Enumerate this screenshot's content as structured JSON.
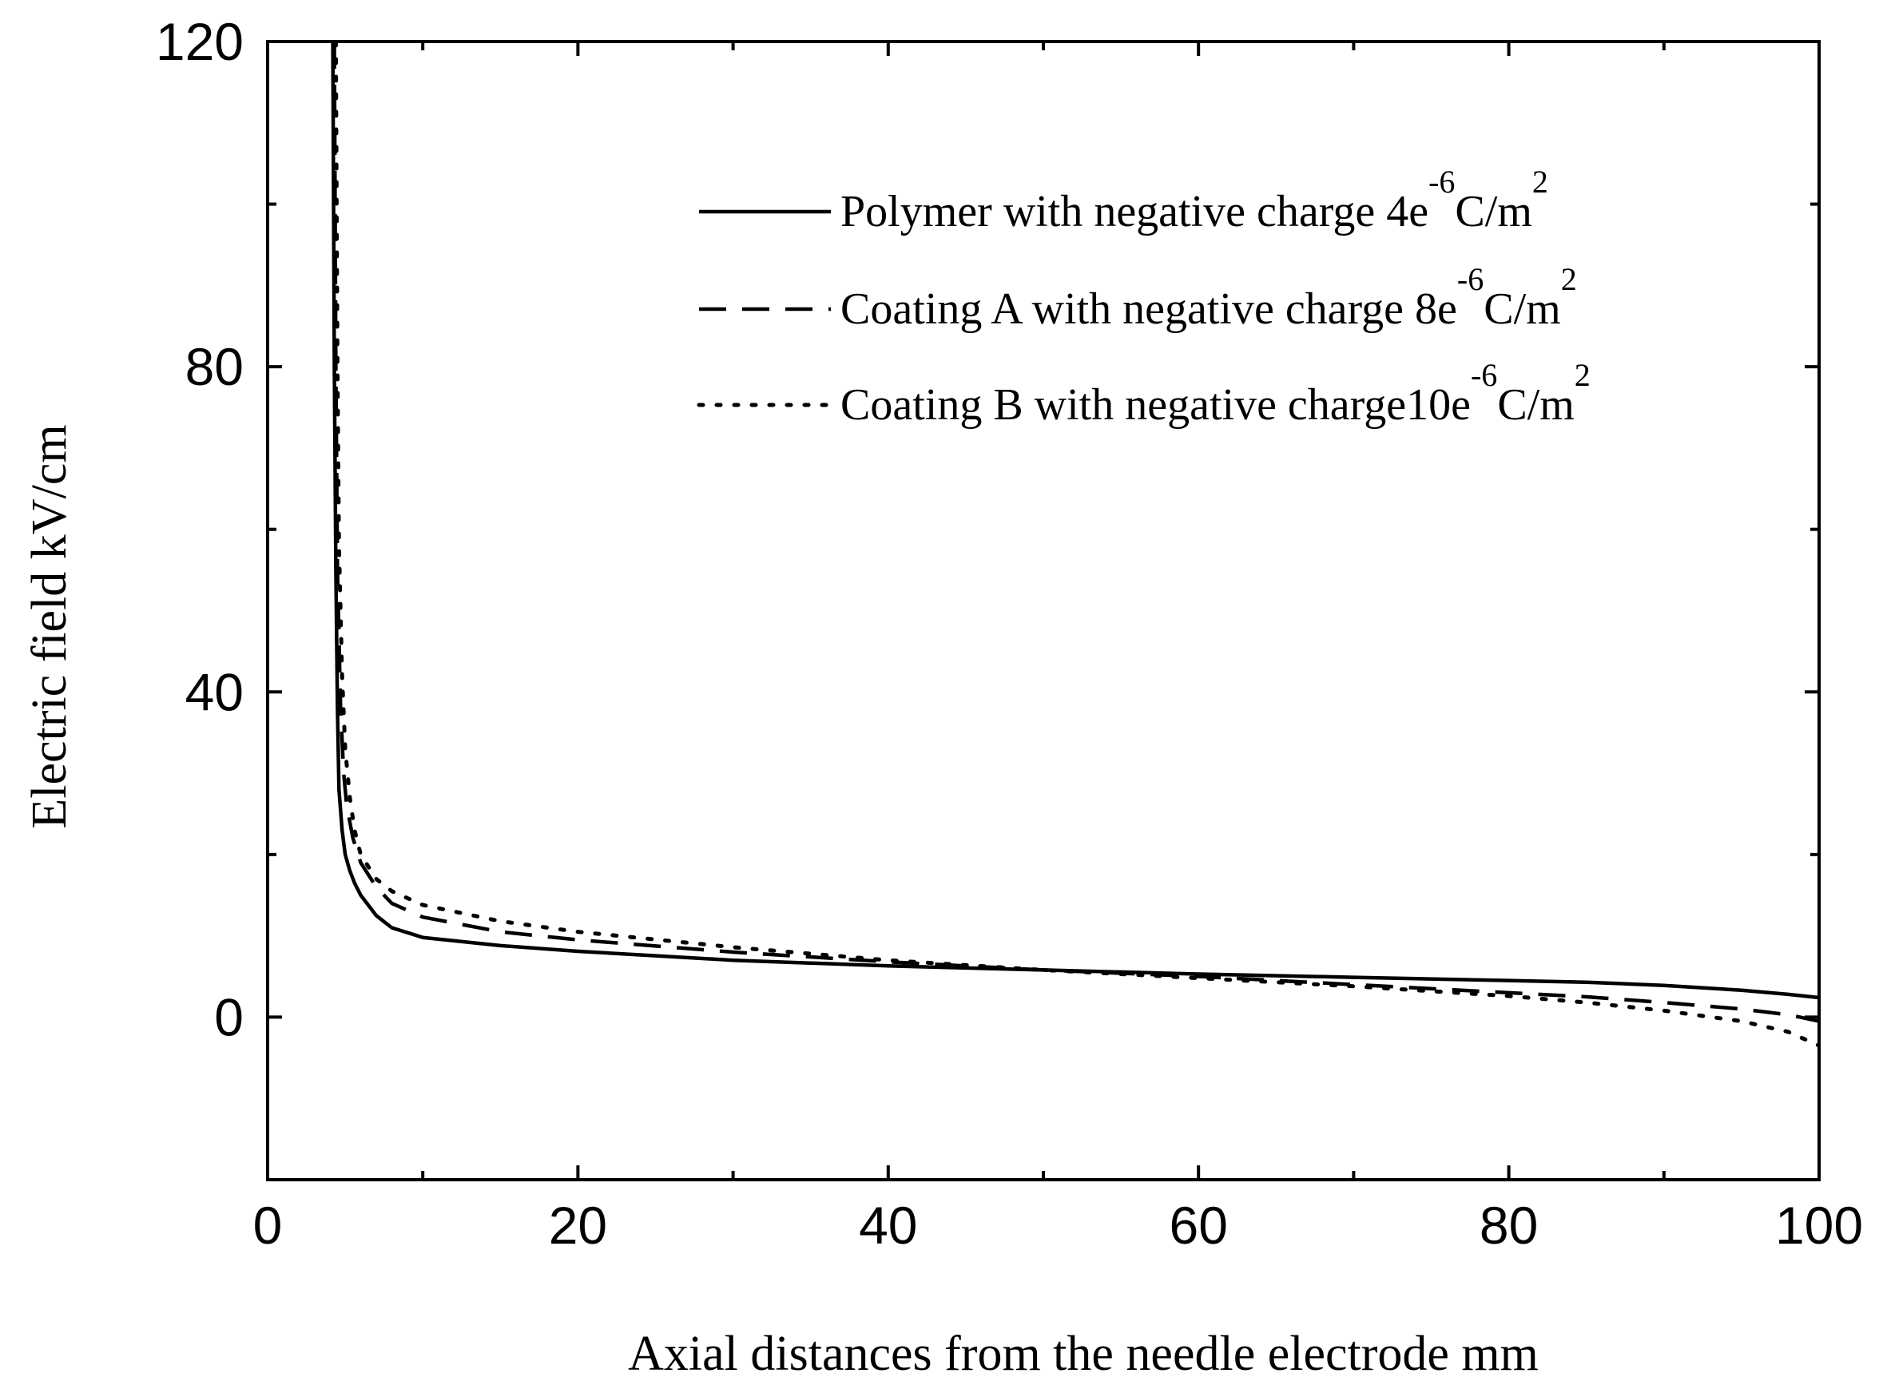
{
  "chart_data": {
    "type": "line",
    "title": "",
    "xlabel": "Axial distances from the needle electrode mm",
    "ylabel": "Electric field kV/cm",
    "xlim": [
      0,
      100
    ],
    "ylim": [
      -20,
      120
    ],
    "x_ticks": [
      0,
      20,
      40,
      60,
      80,
      100
    ],
    "y_ticks": [
      0,
      40,
      80,
      120
    ],
    "x_tick_labels": [
      "0",
      "20",
      "40",
      "60",
      "80",
      "100"
    ],
    "y_tick_labels": [
      "0",
      "40",
      "80",
      "120"
    ],
    "grid": false,
    "legend_position": "top-right",
    "series": [
      {
        "name": "Polymer with negative charge 4e-6C/m2",
        "legend": {
          "text": "Polymer with negative charge 4e",
          "sup1": "-6",
          "mid": "C/m",
          "sup2": "2"
        },
        "style": "solid",
        "color": "#000000",
        "x": [
          4.2,
          4.3,
          4.4,
          4.5,
          4.6,
          4.8,
          5.0,
          5.3,
          5.6,
          6,
          7,
          8,
          10,
          15,
          20,
          30,
          40,
          50,
          60,
          70,
          80,
          85,
          90,
          95,
          98,
          100
        ],
        "y": [
          120,
          80,
          55,
          38,
          28,
          23,
          20,
          18,
          16.5,
          15,
          12.5,
          11,
          9.8,
          8.8,
          8.1,
          7.0,
          6.3,
          5.8,
          5.3,
          4.9,
          4.5,
          4.3,
          3.9,
          3.3,
          2.8,
          2.4
        ]
      },
      {
        "name": "Coating A with negative charge 8e-6C/m2",
        "legend": {
          "text": "Coating A with negative charge 8e",
          "sup1": "-6",
          "mid": "C/m",
          "sup2": "2"
        },
        "style": "dashed",
        "color": "#000000",
        "x": [
          4.3,
          4.4,
          4.5,
          4.7,
          4.9,
          5.1,
          5.5,
          6,
          7,
          8,
          10,
          15,
          20,
          30,
          40,
          50,
          60,
          70,
          80,
          85,
          90,
          95,
          98,
          100
        ],
        "y": [
          120,
          80,
          55,
          38,
          30,
          26,
          22,
          19,
          16,
          14,
          12.3,
          10.5,
          9.5,
          8.0,
          6.8,
          5.8,
          5.0,
          4.0,
          3.0,
          2.5,
          1.8,
          1.0,
          0.3,
          -0.5
        ]
      },
      {
        "name": "Coating B with negative charge10e-6C/m2",
        "legend": {
          "text": "Coating B with negative charge10e",
          "sup1": "-6",
          "mid": "C/m",
          "sup2": "2"
        },
        "style": "dotted",
        "color": "#000000",
        "x": [
          4.4,
          4.5,
          4.6,
          4.8,
          5.0,
          5.3,
          5.6,
          6,
          7,
          8,
          10,
          15,
          20,
          30,
          40,
          50,
          60,
          70,
          80,
          85,
          90,
          95,
          98,
          100
        ],
        "y": [
          120,
          80,
          58,
          42,
          33,
          27,
          23,
          20,
          17,
          15.5,
          13.8,
          11.8,
          10.5,
          8.6,
          7.0,
          5.8,
          4.8,
          3.8,
          2.6,
          1.8,
          0.8,
          -0.5,
          -1.8,
          -3.5
        ]
      }
    ]
  }
}
